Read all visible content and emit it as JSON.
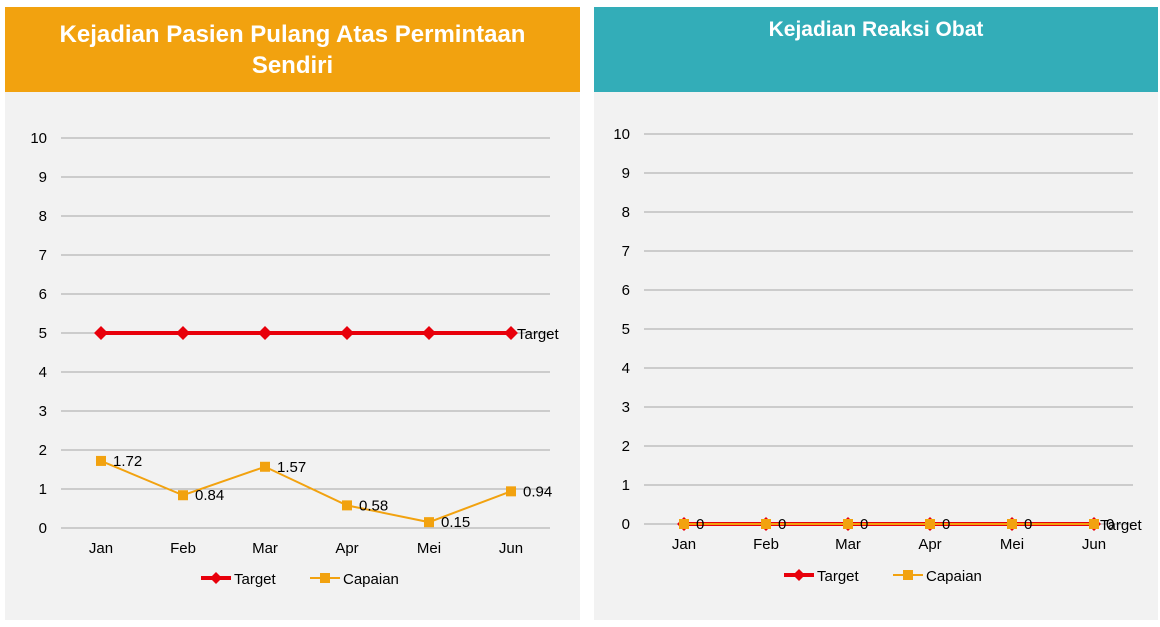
{
  "colors": {
    "left_header": "#f2a20f",
    "right_header": "#33adb8",
    "target": "#e8000b",
    "capaian": "#f2a20f",
    "grid": "#a6a6a6"
  },
  "chart_data": [
    {
      "type": "line",
      "title": "Kejadian Pasien Pulang Atas Permintaan Sendiri",
      "categories": [
        "Jan",
        "Feb",
        "Mar",
        "Apr",
        "Mei",
        "Jun"
      ],
      "y_ticks": [
        "0",
        "1",
        "2",
        "3",
        "4",
        "5",
        "6",
        "7",
        "8",
        "9",
        "10"
      ],
      "ylim": [
        0,
        10
      ],
      "grid": true,
      "legend_position": "bottom",
      "series": [
        {
          "name": "Target",
          "values": [
            5,
            5,
            5,
            5,
            5,
            5
          ],
          "marker": "diamond",
          "end_label": "Target"
        },
        {
          "name": "Capaian",
          "values": [
            1.72,
            0.84,
            1.57,
            0.58,
            0.15,
            0.94
          ],
          "marker": "square",
          "data_labels": [
            "1.72",
            "0.84",
            "1.57",
            "0.58",
            "0.15",
            "0.94"
          ]
        }
      ]
    },
    {
      "type": "line",
      "title": "Kejadian Reaksi Obat",
      "categories": [
        "Jan",
        "Feb",
        "Mar",
        "Apr",
        "Mei",
        "Jun"
      ],
      "y_ticks": [
        "0",
        "1",
        "2",
        "3",
        "4",
        "5",
        "6",
        "7",
        "8",
        "9",
        "10"
      ],
      "ylim": [
        0,
        10
      ],
      "grid": true,
      "legend_position": "bottom",
      "series": [
        {
          "name": "Target",
          "values": [
            0,
            0,
            0,
            0,
            0,
            0
          ],
          "marker": "diamond",
          "end_label": "Target"
        },
        {
          "name": "Capaian",
          "values": [
            0,
            0,
            0,
            0,
            0,
            0
          ],
          "marker": "square",
          "data_labels": [
            "0",
            "0",
            "0",
            "0",
            "0",
            "0"
          ]
        }
      ]
    }
  ]
}
